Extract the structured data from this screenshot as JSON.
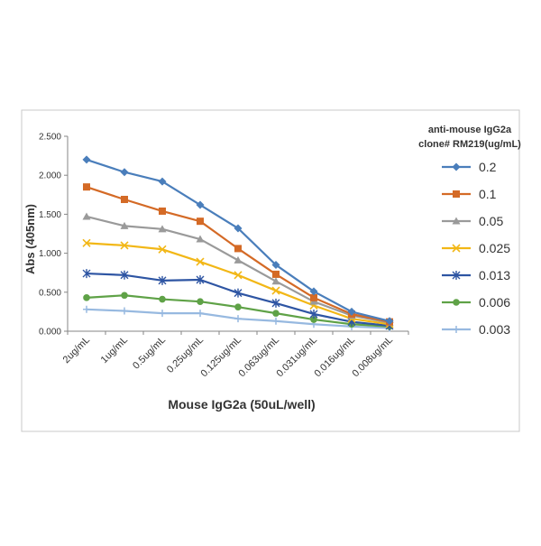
{
  "chart_data": {
    "type": "line",
    "xlabel": "Mouse IgG2a (50uL/well)",
    "ylabel": "Abs (405nm)",
    "ylim": [
      0,
      2.5
    ],
    "yticks": [
      "0.000",
      "0.500",
      "1.000",
      "1.500",
      "2.000",
      "2.500"
    ],
    "categories": [
      "2ug/mL",
      "1ug/mL",
      "0.5ug/mL",
      "0.25ug/mL",
      "0.125ug/mL",
      "0.063ug/mL",
      "0.031ug/mL",
      "0.016ug/mL",
      "0.008ug/mL"
    ],
    "legend": {
      "title_line1": "anti-mouse IgG2a",
      "title_line2": "clone# RM219(ug/mL)",
      "placement": "right"
    },
    "grid": false,
    "series": [
      {
        "name": "0.2",
        "color": "#4a7ebb",
        "marker": "diamond",
        "values": [
          2.2,
          2.04,
          1.92,
          1.62,
          1.32,
          0.85,
          0.51,
          0.25,
          0.13
        ]
      },
      {
        "name": "0.1",
        "color": "#d46a26",
        "marker": "square",
        "values": [
          1.85,
          1.69,
          1.54,
          1.41,
          1.06,
          0.73,
          0.43,
          0.22,
          0.12
        ]
      },
      {
        "name": "0.05",
        "color": "#9a9a9a",
        "marker": "triangle",
        "values": [
          1.47,
          1.35,
          1.31,
          1.18,
          0.91,
          0.64,
          0.38,
          0.2,
          0.11
        ]
      },
      {
        "name": "0.025",
        "color": "#f2b716",
        "marker": "x",
        "values": [
          1.13,
          1.1,
          1.05,
          0.89,
          0.72,
          0.52,
          0.33,
          0.16,
          0.09
        ]
      },
      {
        "name": "0.013",
        "color": "#2e55a3",
        "marker": "asterisk",
        "values": [
          0.74,
          0.72,
          0.65,
          0.66,
          0.49,
          0.36,
          0.22,
          0.12,
          0.07
        ]
      },
      {
        "name": "0.006",
        "color": "#5fa247",
        "marker": "circle",
        "values": [
          0.43,
          0.46,
          0.41,
          0.38,
          0.31,
          0.23,
          0.15,
          0.09,
          0.06
        ]
      },
      {
        "name": "0.003",
        "color": "#97b9e0",
        "marker": "plus",
        "values": [
          0.28,
          0.26,
          0.23,
          0.23,
          0.16,
          0.13,
          0.09,
          0.06,
          0.04
        ]
      }
    ]
  }
}
